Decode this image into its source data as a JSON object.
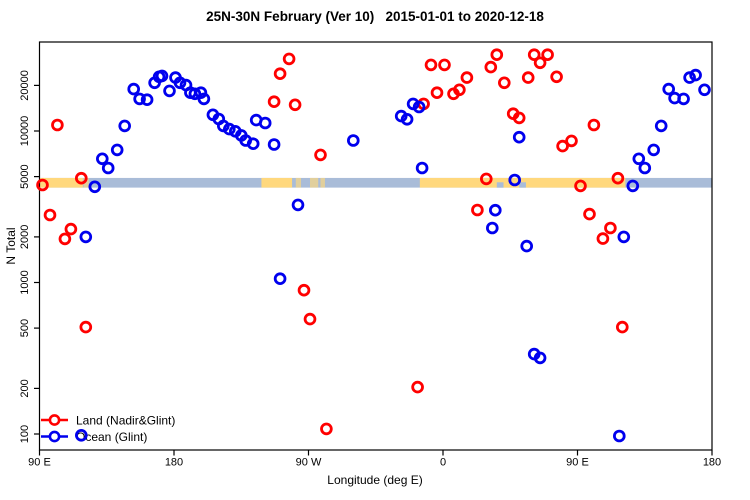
{
  "chart_data": {
    "type": "scatter",
    "title": "25N-30N February (Ver 10)   2015-01-01 to 2020-12-18",
    "xlabel": "Longitude (deg E)",
    "ylabel": "N Total",
    "x_axis": {
      "range": [
        90,
        540
      ],
      "wraps": "longitude increases eastward: 90E → 180 → 90W → 0 → 90E → 180",
      "ticks": [
        {
          "value": 90,
          "label": "90 E"
        },
        {
          "value": 180,
          "label": "180"
        },
        {
          "value": 270,
          "label": "90 W"
        },
        {
          "value": 360,
          "label": "0"
        },
        {
          "value": 450,
          "label": "90 E"
        },
        {
          "value": 540,
          "label": "180"
        }
      ]
    },
    "y_axis": {
      "scale": "log",
      "range": [
        78,
        38600
      ],
      "ticks": [
        {
          "value": 100,
          "label": "100"
        },
        {
          "value": 200,
          "label": "200"
        },
        {
          "value": 500,
          "label": "500"
        },
        {
          "value": 1000,
          "label": "1000"
        },
        {
          "value": 2000,
          "label": "2000"
        },
        {
          "value": 5000,
          "label": "5000"
        },
        {
          "value": 10000,
          "label": "10000"
        },
        {
          "value": 20000,
          "label": "20000"
        }
      ]
    },
    "grid": false,
    "legend": {
      "position": "bottom-left"
    },
    "map_band": {
      "description": "land/ocean coastline strip of the 25N-30N latitude belt drawn across the plot",
      "value_top": 4900,
      "value_bottom": 4230,
      "ocean_color": "#A9BCD8",
      "land_color": "#FFD87D",
      "land_segments_lon": [
        {
          "from": 90,
          "to": 119,
          "faint": false
        },
        {
          "from": 119.5,
          "to": 123,
          "faint": true
        },
        {
          "from": 238.5,
          "to": 259,
          "faint": false
        },
        {
          "from": 261.5,
          "to": 265,
          "faint": true
        },
        {
          "from": 271,
          "to": 276.5,
          "faint": true
        },
        {
          "from": 278,
          "to": 281,
          "faint": true
        },
        {
          "from": 344.5,
          "to": 482,
          "faint": false
        }
      ],
      "ocean_inlets_lon": [
        {
          "from": 396,
          "to": 400.5
        },
        {
          "from": 411,
          "to": 415.5
        }
      ]
    },
    "series": [
      {
        "name": "Land (Nadir&Glint)",
        "color": "#FF0000",
        "points": [
          [
            102,
            10950
          ],
          [
            92,
            4400
          ],
          [
            118,
            4880
          ],
          [
            97,
            2790
          ],
          [
            111,
            2250
          ],
          [
            107,
            1940
          ],
          [
            121,
            508
          ],
          [
            257,
            29900
          ],
          [
            251,
            23900
          ],
          [
            247,
            15600
          ],
          [
            261,
            14900
          ],
          [
            278,
            6950
          ],
          [
            267,
            890
          ],
          [
            271,
            573
          ],
          [
            282,
            108
          ],
          [
            343,
            204
          ],
          [
            347,
            15100
          ],
          [
            352,
            27300
          ],
          [
            361,
            27300
          ],
          [
            376,
            22500
          ],
          [
            356,
            17900
          ],
          [
            367,
            17600
          ],
          [
            371,
            18700
          ],
          [
            392,
            26400
          ],
          [
            396,
            31900
          ],
          [
            401,
            20800
          ],
          [
            417,
            22500
          ],
          [
            421,
            31900
          ],
          [
            425,
            28200
          ],
          [
            430,
            31900
          ],
          [
            436,
            22800
          ],
          [
            407,
            13000
          ],
          [
            411,
            12200
          ],
          [
            440,
            7950
          ],
          [
            446,
            8600
          ],
          [
            461,
            10950
          ],
          [
            383,
            3010
          ],
          [
            458,
            2830
          ],
          [
            467,
            1950
          ],
          [
            472,
            2290
          ],
          [
            480,
            508
          ],
          [
            389,
            4830
          ],
          [
            452,
            4340
          ],
          [
            477,
            4880
          ]
        ]
      },
      {
        "name": "Ocean (Glint)",
        "color": "#0000EE",
        "points": [
          [
            153,
            18900
          ],
          [
            157,
            16300
          ],
          [
            162,
            16100
          ],
          [
            167,
            20800
          ],
          [
            170,
            22800
          ],
          [
            172,
            23100
          ],
          [
            177,
            18400
          ],
          [
            181,
            22500
          ],
          [
            184,
            20800
          ],
          [
            188,
            20100
          ],
          [
            191,
            17900
          ],
          [
            194,
            17600
          ],
          [
            198,
            17900
          ],
          [
            200,
            16300
          ],
          [
            206,
            12800
          ],
          [
            210,
            12000
          ],
          [
            213,
            10800
          ],
          [
            217,
            10300
          ],
          [
            221,
            9950
          ],
          [
            225,
            9350
          ],
          [
            228,
            8650
          ],
          [
            233,
            8250
          ],
          [
            235,
            11800
          ],
          [
            241,
            11300
          ],
          [
            247,
            8150
          ],
          [
            147,
            10800
          ],
          [
            142,
            7500
          ],
          [
            132,
            6550
          ],
          [
            136,
            5700
          ],
          [
            127,
            4280
          ],
          [
            121,
            2000
          ],
          [
            263,
            3250
          ],
          [
            251,
            1060
          ],
          [
            300,
            8650
          ],
          [
            332,
            12550
          ],
          [
            336,
            11950
          ],
          [
            340,
            15100
          ],
          [
            344,
            14400
          ],
          [
            346,
            5700
          ],
          [
            411,
            9100
          ],
          [
            395,
            3000
          ],
          [
            393,
            2290
          ],
          [
            416,
            1740
          ],
          [
            481,
            2000
          ],
          [
            421,
            337
          ],
          [
            425,
            318
          ],
          [
            511,
            18900
          ],
          [
            515,
            16500
          ],
          [
            521,
            16300
          ],
          [
            525,
            22500
          ],
          [
            529,
            23400
          ],
          [
            535,
            18700
          ],
          [
            506,
            10800
          ],
          [
            501,
            7500
          ],
          [
            491,
            6550
          ],
          [
            495,
            5700
          ],
          [
            408,
            4750
          ],
          [
            487,
            4340
          ],
          [
            478,
            97
          ],
          [
            118,
            98
          ]
        ]
      }
    ]
  }
}
